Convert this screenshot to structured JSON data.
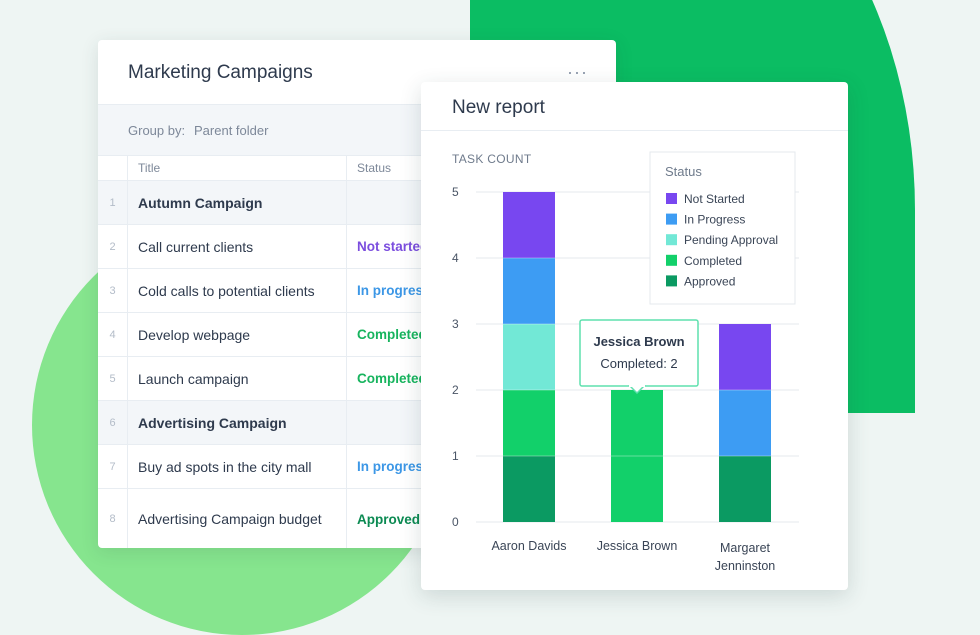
{
  "table_card": {
    "title": "Marketing Campaigns",
    "more_label": "···",
    "group_by_label": "Group by:",
    "group_by_value": "Parent folder",
    "columns": {
      "title": "Title",
      "status": "Status"
    },
    "rows": [
      {
        "num": "1",
        "title": "Autumn Campaign",
        "status": "",
        "status_key": "",
        "group": true
      },
      {
        "num": "2",
        "title": "Call current clients",
        "status": "Not started",
        "status_key": "notstarted"
      },
      {
        "num": "3",
        "title": "Cold calls to potential clients",
        "status": "In progress",
        "status_key": "progress"
      },
      {
        "num": "4",
        "title": "Develop webpage",
        "status": "Completed",
        "status_key": "completed"
      },
      {
        "num": "5",
        "title": "Launch campaign",
        "status": "Completed",
        "status_key": "completed"
      },
      {
        "num": "6",
        "title": "Advertising Campaign",
        "status": "",
        "status_key": "",
        "group": true
      },
      {
        "num": "7",
        "title": "Buy ad spots in the city mall",
        "status": "In progress",
        "status_key": "progress"
      },
      {
        "num": "8",
        "title": "Advertising Campaign budget",
        "status": "Approved",
        "status_key": "approved"
      }
    ]
  },
  "report_card": {
    "title": "New report"
  },
  "chart_data": {
    "type": "bar",
    "stacked": true,
    "ylabel": "TASK COUNT",
    "ylim": [
      0,
      5
    ],
    "yticks": [
      0,
      1,
      2,
      3,
      4,
      5
    ],
    "categories": [
      "Aaron Davids",
      "Jessica Brown",
      "Margaret Jenninston"
    ],
    "series": [
      {
        "name": "Approved",
        "color": "#0b9a62",
        "values": [
          1,
          0,
          1
        ]
      },
      {
        "name": "Completed",
        "color": "#12d06a",
        "values": [
          1,
          2,
          0
        ]
      },
      {
        "name": "Pending Approval",
        "color": "#72e8d6",
        "values": [
          1,
          0,
          0
        ]
      },
      {
        "name": "In Progress",
        "color": "#3d9cf3",
        "values": [
          1,
          0,
          1
        ]
      },
      {
        "name": "Not Started",
        "color": "#7847f0",
        "values": [
          1,
          0,
          1
        ]
      }
    ],
    "legend": {
      "title": "Status",
      "position": "top-right",
      "order": [
        "Not Started",
        "In Progress",
        "Pending Approval",
        "Completed",
        "Approved"
      ]
    },
    "grid": true,
    "tooltip": {
      "name": "Jessica Brown",
      "text": "Completed: 2"
    }
  }
}
